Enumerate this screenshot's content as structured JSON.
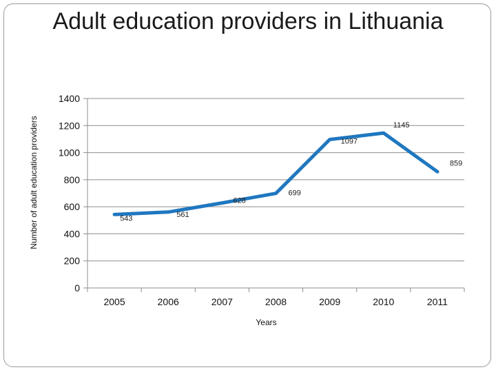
{
  "chart_data": {
    "type": "line",
    "title": "Adult education providers in Lithuania",
    "xlabel": "Years",
    "ylabel": "Number of adult education providers",
    "categories": [
      "2005",
      "2006",
      "2007",
      "2008",
      "2009",
      "2010",
      "2011"
    ],
    "series": [
      {
        "values": [
          543,
          561,
          628,
          699,
          1097,
          1145,
          859
        ],
        "color": "#1f77c0"
      }
    ],
    "data_labels": [
      "543",
      "561",
      "628",
      "699",
      "1097",
      "1145",
      "859"
    ],
    "ylim": [
      0,
      1400
    ],
    "yticks": [
      0,
      200,
      400,
      600,
      800,
      1000,
      1200,
      1400
    ],
    "grid": true,
    "legend": "none"
  }
}
